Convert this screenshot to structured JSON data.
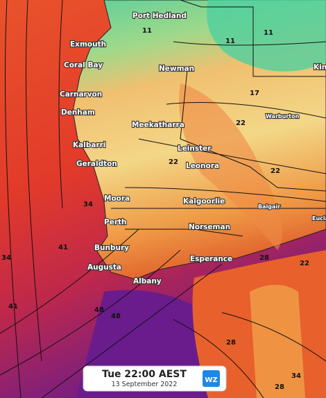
{
  "places": [
    "Port Hedland",
    "Exmouth",
    "Coral Bay",
    "Newman",
    "Kin",
    "Carnarvon",
    "Denham",
    "Warburton",
    "Meekatharra",
    "Kalbarri",
    "Leinster",
    "Geraldton",
    "Leonora",
    "Moora",
    "Kalgoorlie",
    "Balgair",
    "Eucla",
    "Perth",
    "Norseman",
    "Bunbury",
    "Esperance",
    "Augusta",
    "Albany"
  ],
  "contour_labels": [
    11,
    11,
    11,
    17,
    22,
    22,
    22,
    34,
    41,
    34,
    41,
    48,
    48,
    28,
    22,
    28,
    28,
    34
  ],
  "timestamp": {
    "time": "Tue 22:00 AEST",
    "date": "13 September 2022"
  },
  "logo": "WZ"
}
